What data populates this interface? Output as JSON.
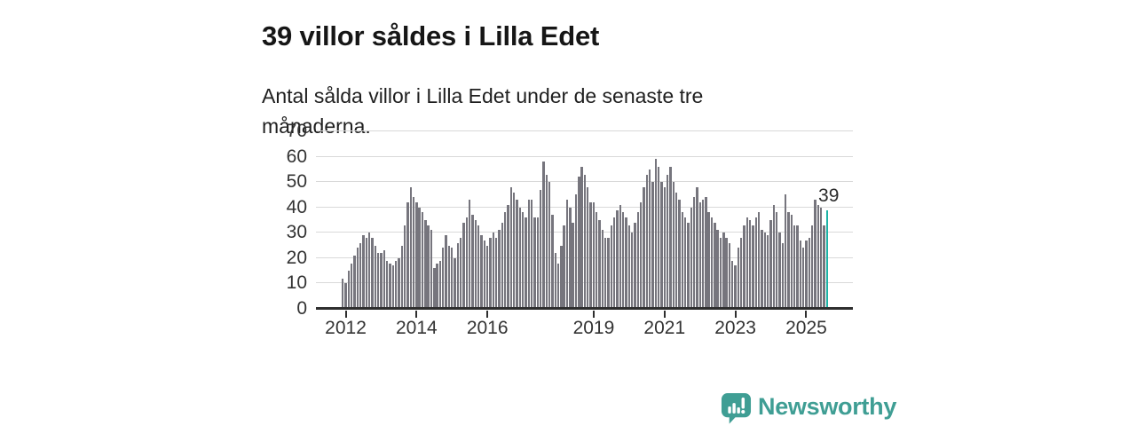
{
  "header": {
    "title": "39 villor såldes i Lilla Edet",
    "subtitle": "Antal sålda villor i Lilla Edet under de senaste tre månaderna."
  },
  "branding": {
    "logo_text": "Newsworthy",
    "logo_icon": "speech-bubble-bar-chart-exclamation"
  },
  "colors": {
    "bar": "#76757d",
    "highlight_bar": "#1db3a6",
    "logo_teal": "#3f9e94",
    "gridline": "#d9d9d9",
    "axis": "#2e2e2e",
    "title_text": "#161616",
    "body_text": "#1f1f1f",
    "axis_text": "#333333"
  },
  "chart_data": {
    "type": "bar",
    "title": "39 villor såldes i Lilla Edet",
    "subtitle": "Antal sålda villor i Lilla Edet under de senaste tre månaderna.",
    "xlabel": "",
    "ylabel": "",
    "ylim": [
      0,
      70
    ],
    "y_ticks": [
      0,
      10,
      20,
      30,
      40,
      50,
      60,
      70
    ],
    "grid": "horizontal",
    "x_frequency": "monthly",
    "x_start": "2011-12",
    "x_end": "2025-08",
    "x_ticks": [
      {
        "label": "2012",
        "month_index": 1
      },
      {
        "label": "2014",
        "month_index": 25
      },
      {
        "label": "2016",
        "month_index": 49
      },
      {
        "label": "2019",
        "month_index": 85
      },
      {
        "label": "2021",
        "month_index": 109
      },
      {
        "label": "2023",
        "month_index": 133
      },
      {
        "label": "2025",
        "month_index": 157
      }
    ],
    "highlight_last_bar": true,
    "highlight_value": 39,
    "highlight_label": "39",
    "values": [
      12,
      10,
      15,
      18,
      21,
      24,
      26,
      29,
      28,
      30,
      28,
      25,
      22,
      22,
      23,
      19,
      18,
      17,
      19,
      20,
      25,
      33,
      42,
      48,
      44,
      42,
      40,
      38,
      35,
      33,
      31,
      16,
      18,
      19,
      24,
      29,
      25,
      24,
      20,
      26,
      28,
      34,
      36,
      43,
      37,
      35,
      33,
      29,
      27,
      25,
      28,
      30,
      28,
      31,
      34,
      38,
      41,
      48,
      46,
      43,
      40,
      38,
      36,
      43,
      43,
      36,
      36,
      47,
      58,
      53,
      50,
      37,
      22,
      18,
      25,
      33,
      43,
      40,
      34,
      45,
      52,
      56,
      53,
      48,
      42,
      42,
      38,
      35,
      31,
      28,
      28,
      33,
      36,
      39,
      41,
      38,
      36,
      33,
      30,
      34,
      38,
      42,
      48,
      53,
      55,
      50,
      59,
      56,
      50,
      48,
      53,
      56,
      50,
      46,
      43,
      38,
      36,
      34,
      40,
      44,
      48,
      42,
      43,
      44,
      38,
      36,
      34,
      31,
      28,
      30,
      28,
      26,
      19,
      17,
      24,
      28,
      33,
      36,
      35,
      33,
      36,
      38,
      31,
      30,
      29,
      35,
      41,
      38,
      30,
      26,
      45,
      38,
      37,
      33,
      33,
      27,
      24,
      27,
      28,
      33,
      43,
      41,
      40,
      33,
      39
    ]
  }
}
